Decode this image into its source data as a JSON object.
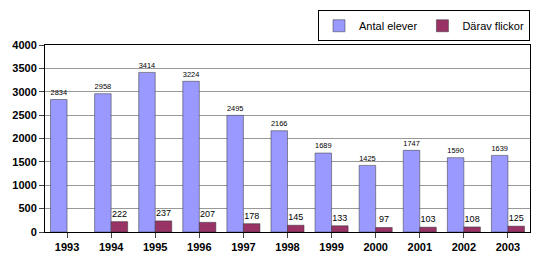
{
  "chart_data": {
    "type": "bar",
    "categories": [
      "1993",
      "1994",
      "1995",
      "1996",
      "1997",
      "1998",
      "1999",
      "2000",
      "2001",
      "2002",
      "2003"
    ],
    "series": [
      {
        "name": "Antal elever",
        "color": "#9999ff",
        "values": [
          2834,
          2958,
          3414,
          3224,
          2495,
          2166,
          1689,
          1425,
          1747,
          1590,
          1639
        ]
      },
      {
        "name": "Därav flickor",
        "color": "#993366",
        "values": [
          null,
          222,
          237,
          207,
          178,
          145,
          133,
          97,
          103,
          108,
          125
        ]
      }
    ],
    "ylim": [
      0,
      4000
    ],
    "yticks": [
      0,
      500,
      1000,
      1500,
      2000,
      2500,
      3000,
      3500,
      4000
    ],
    "grid": true,
    "legend": "top right",
    "data_labels": true
  }
}
